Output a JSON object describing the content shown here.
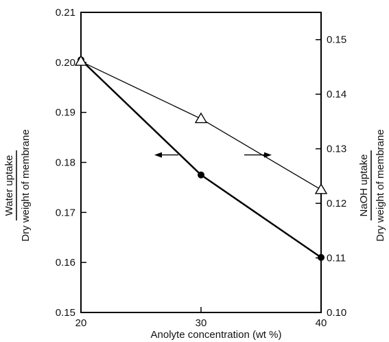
{
  "chart_data": {
    "type": "line",
    "title": "",
    "xlabel": "Anolyte concentration (wt %)",
    "ylabel_left_numerator": "Water uptake",
    "ylabel_left_denominator": "Dry weight of membrane",
    "ylabel_right_numerator": "NaOH uptake",
    "ylabel_right_denominator": "Dry weight of membrane",
    "x": [
      20,
      30,
      40
    ],
    "xlim": [
      20,
      40
    ],
    "ylim_left": [
      0.15,
      0.21
    ],
    "ylim_right": [
      0.1,
      0.155
    ],
    "xticks": [
      "20",
      "30",
      "40"
    ],
    "yticks_left": [
      "0.15",
      "0.16",
      "0.17",
      "0.18",
      "0.19",
      "0.20",
      "0.21"
    ],
    "yticks_right": [
      "0.10",
      "0.11",
      "0.12",
      "0.13",
      "0.14",
      "0.15"
    ],
    "series": [
      {
        "marker": "filled-circle",
        "axis": "left",
        "values": [
          0.2005,
          0.1775,
          0.161
        ],
        "color": "#000000"
      },
      {
        "marker": "open-triangle",
        "axis": "right",
        "values": [
          0.146,
          0.1355,
          0.1225
        ],
        "color": "#000000"
      }
    ],
    "annotations": [
      {
        "type": "arrow",
        "direction": "left",
        "refers_to": "left-axis"
      },
      {
        "type": "arrow",
        "direction": "right",
        "refers_to": "right-axis"
      }
    ],
    "grid": false,
    "legend": "none"
  }
}
